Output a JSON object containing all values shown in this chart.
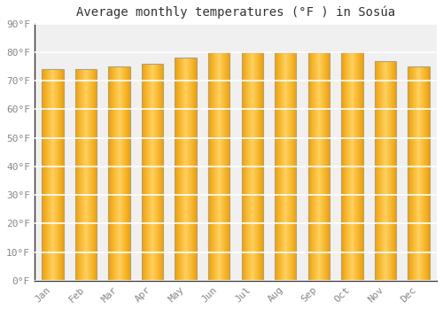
{
  "title": "Average monthly temperatures (°F ) in Sosúa",
  "months": [
    "Jan",
    "Feb",
    "Mar",
    "Apr",
    "May",
    "Jun",
    "Jul",
    "Aug",
    "Sep",
    "Oct",
    "Nov",
    "Dec"
  ],
  "values": [
    74,
    74,
    75,
    76,
    78,
    80,
    80,
    80,
    80,
    80,
    77,
    75
  ],
  "ylim": [
    0,
    90
  ],
  "yticks": [
    0,
    10,
    20,
    30,
    40,
    50,
    60,
    70,
    80,
    90
  ],
  "ytick_labels": [
    "0°F",
    "10°F",
    "20°F",
    "30°F",
    "40°F",
    "50°F",
    "60°F",
    "70°F",
    "80°F",
    "90°F"
  ],
  "background_color": "#FFFFFF",
  "plot_bg_color": "#F0F0F0",
  "grid_color": "#FFFFFF",
  "bar_color_center": "#FFD060",
  "bar_color_edge": "#F0A000",
  "bar_border_color": "#B0A080",
  "title_fontsize": 10,
  "tick_fontsize": 8,
  "bar_width": 0.65
}
